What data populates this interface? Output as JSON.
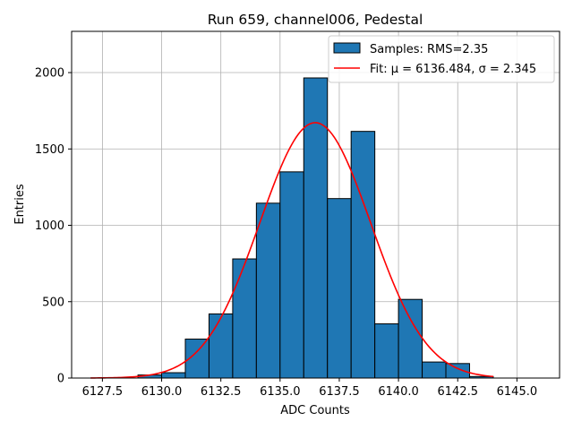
{
  "chart_data": {
    "type": "bar",
    "title": "Run 659, channel006, Pedestal",
    "xlabel": "ADC Counts",
    "ylabel": "Entries",
    "xlim": [
      6126.2,
      6146.8
    ],
    "ylim": [
      0,
      2270
    ],
    "grid": true,
    "legend_position": "top-right",
    "xticks": [
      6127.5,
      6130.0,
      6132.5,
      6135.0,
      6137.5,
      6140.0,
      6142.5,
      6145.0
    ],
    "xtick_labels": [
      "6127.5",
      "6130.0",
      "6132.5",
      "6135.0",
      "6137.5",
      "6140.0",
      "6142.5",
      "6145.0"
    ],
    "yticks": [
      0,
      500,
      1000,
      1500,
      2000
    ],
    "ytick_labels": [
      "0",
      "500",
      "1000",
      "1500",
      "2000"
    ],
    "histogram": {
      "name": "Samples: RMS=2.35",
      "color": "#1f77b4",
      "edgecolor": "#000000",
      "bins": [
        {
          "x0": 6129,
          "x1": 6130,
          "count": 20
        },
        {
          "x0": 6130,
          "x1": 6131,
          "count": 35
        },
        {
          "x0": 6131,
          "x1": 6132,
          "count": 255
        },
        {
          "x0": 6132,
          "x1": 6133,
          "count": 420
        },
        {
          "x0": 6133,
          "x1": 6134,
          "count": 780
        },
        {
          "x0": 6134,
          "x1": 6135,
          "count": 1145
        },
        {
          "x0": 6135,
          "x1": 6136,
          "count": 1350
        },
        {
          "x0": 6136,
          "x1": 6137,
          "count": 1965
        },
        {
          "x0": 6137,
          "x1": 6138,
          "count": 1175
        },
        {
          "x0": 6138,
          "x1": 6139,
          "count": 1615
        },
        {
          "x0": 6139,
          "x1": 6140,
          "count": 355
        },
        {
          "x0": 6140,
          "x1": 6141,
          "count": 515
        },
        {
          "x0": 6141,
          "x1": 6142,
          "count": 105
        },
        {
          "x0": 6142,
          "x1": 6143,
          "count": 95
        },
        {
          "x0": 6143,
          "x1": 6144,
          "count": 10
        }
      ]
    },
    "fit": {
      "name": "Fit: μ = 6136.484, σ = 2.345",
      "color": "#ff0000",
      "mu": 6136.484,
      "sigma": 2.345,
      "amplitude": 1672,
      "x_range": [
        6127.0,
        6144.0
      ]
    }
  }
}
